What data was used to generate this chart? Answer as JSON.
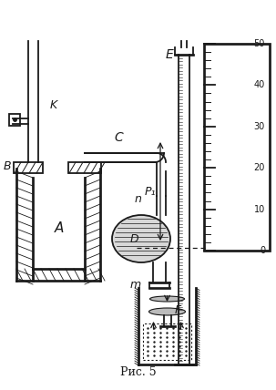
{
  "bg_color": "#ffffff",
  "line_color": "#1a1a1a",
  "label_A": "A",
  "label_B": "B",
  "label_C": "C",
  "label_D": "D",
  "label_E": "E",
  "label_F": "F",
  "label_K": "K",
  "label_n": "n",
  "label_m": "m",
  "label_P1": "P₁",
  "label_caption": "Рис. 5"
}
